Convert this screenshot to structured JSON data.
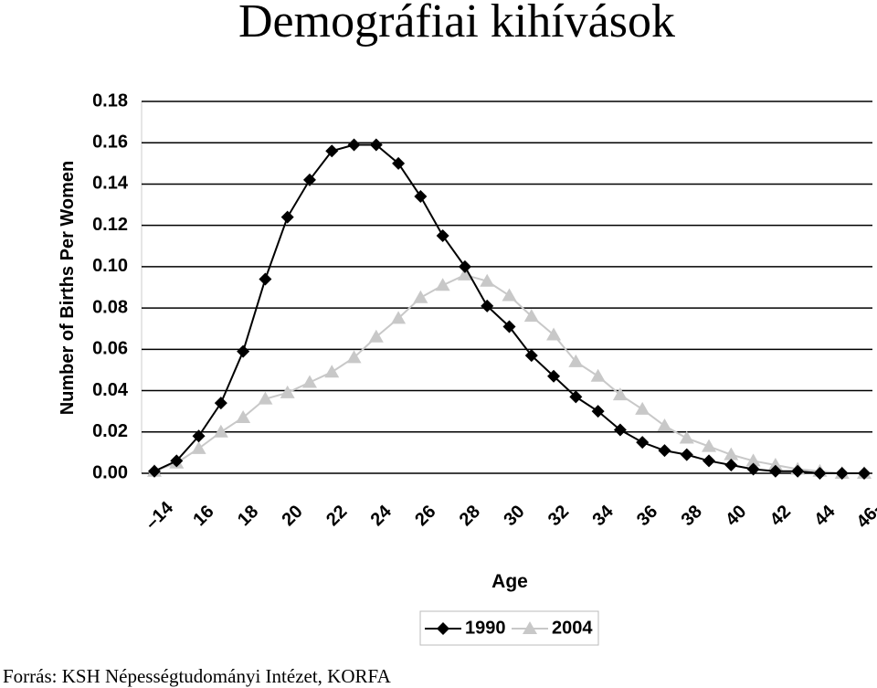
{
  "chart_data": {
    "type": "line",
    "title": "Demográfiai kihívások",
    "y_label": "Number of Births Per Women",
    "x_label": "Age",
    "source": "Forrás: KSH Népességtudományi Intézet, KORFA",
    "categories": [
      "–14",
      null,
      "16",
      null,
      "18",
      null,
      "20",
      null,
      "22",
      null,
      "24",
      null,
      "26",
      null,
      "28",
      null,
      "30",
      null,
      "32",
      null,
      "34",
      null,
      "36",
      null,
      "38",
      null,
      "40",
      null,
      "42",
      null,
      "44",
      null,
      "46-"
    ],
    "series": [
      {
        "name": "1990",
        "color": "#000000",
        "marker": "diamond",
        "values": [
          0.001,
          0.006,
          0.018,
          0.034,
          0.059,
          0.094,
          0.124,
          0.142,
          0.156,
          0.159,
          0.159,
          0.15,
          0.134,
          0.115,
          0.1,
          0.081,
          0.071,
          0.057,
          0.047,
          0.037,
          0.03,
          0.021,
          0.015,
          0.011,
          0.009,
          0.006,
          0.004,
          0.002,
          0.001,
          0.001,
          0.0,
          0.0,
          0.0
        ]
      },
      {
        "name": "2004",
        "color": "#c8c8c8",
        "marker": "triangle",
        "values": [
          0.001,
          0.005,
          0.012,
          0.02,
          0.027,
          0.036,
          0.039,
          0.044,
          0.049,
          0.056,
          0.066,
          0.075,
          0.085,
          0.091,
          0.096,
          0.093,
          0.086,
          0.076,
          0.067,
          0.054,
          0.047,
          0.038,
          0.031,
          0.023,
          0.017,
          0.013,
          0.009,
          0.006,
          0.004,
          0.002,
          0.001,
          0.0,
          0.0
        ]
      }
    ],
    "ylim": [
      0,
      0.18
    ],
    "yticks": [
      {
        "value": 0,
        "label": "0.00"
      },
      {
        "value": 0.02,
        "label": "0.02"
      },
      {
        "value": 0.04,
        "label": "0.04"
      },
      {
        "value": 0.06,
        "label": "0.06"
      },
      {
        "value": 0.08,
        "label": "0.08"
      },
      {
        "value": 0.1,
        "label": "0.10"
      },
      {
        "value": 0.12,
        "label": "0.12"
      },
      {
        "value": 0.14,
        "label": "0.14"
      },
      {
        "value": 0.16,
        "label": "0.16"
      },
      {
        "value": 0.18,
        "label": "0.18"
      }
    ],
    "grid": true,
    "legend": "bottom"
  }
}
